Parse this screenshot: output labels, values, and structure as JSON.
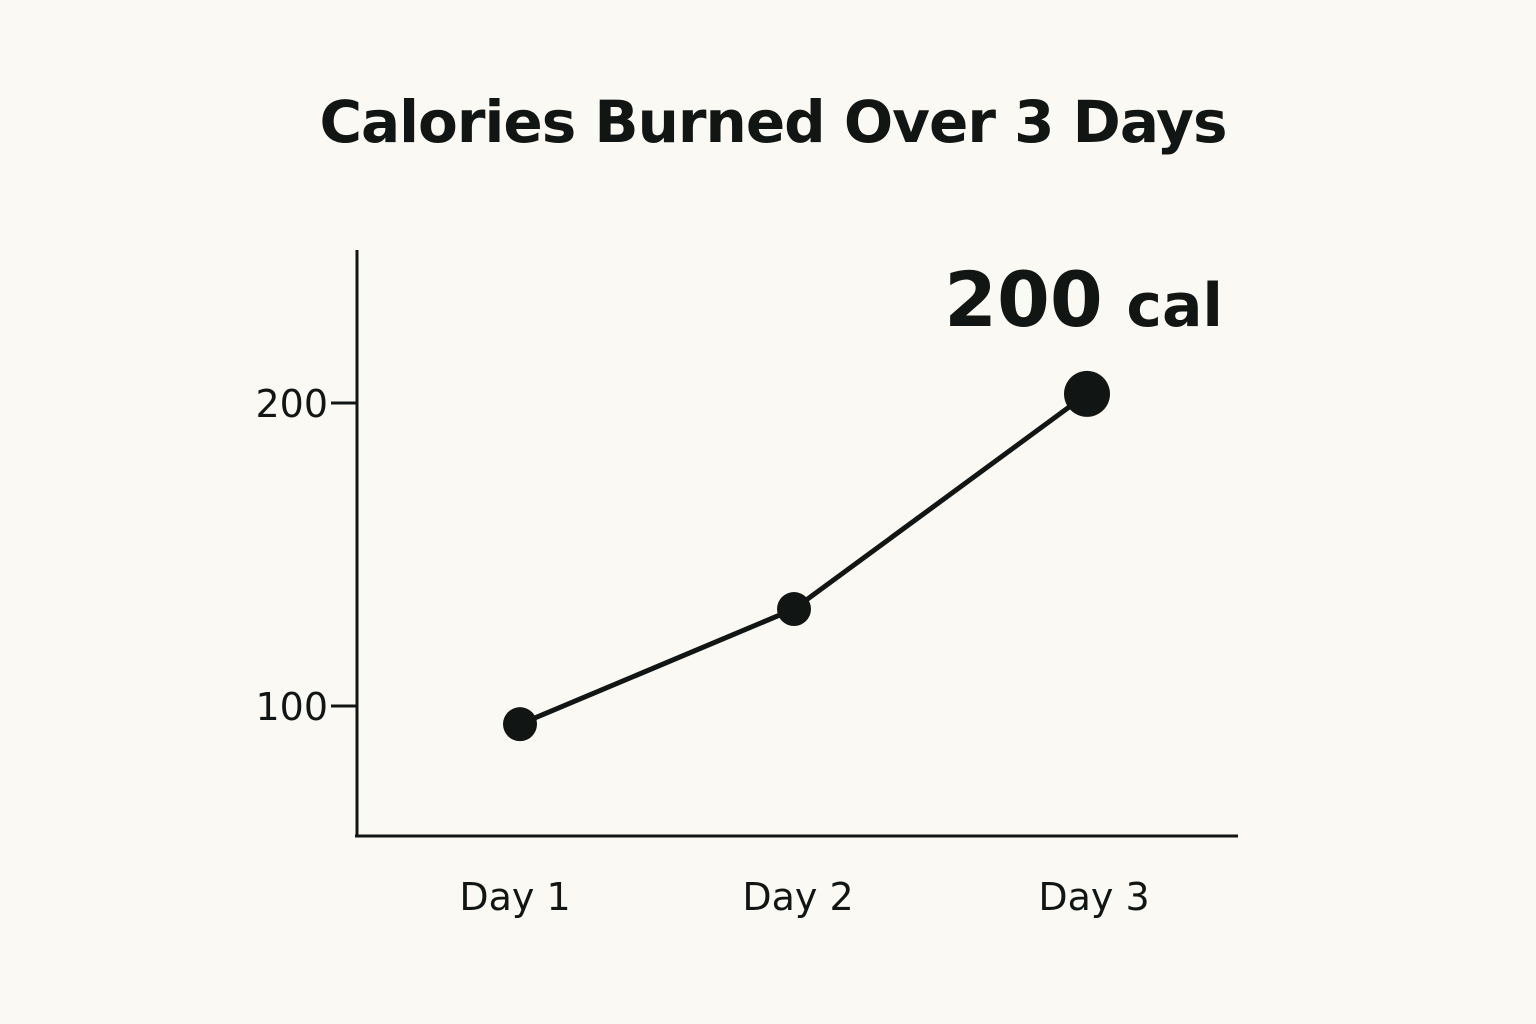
{
  "chart_data": {
    "type": "line",
    "title": "Calories Burned Over 3 Days",
    "xlabel": "",
    "ylabel": "",
    "categories": [
      "Day 1",
      "Day 2",
      "Day 3"
    ],
    "values": [
      94,
      132,
      203
    ],
    "yticks": [
      100,
      200
    ],
    "ylim": [
      57,
      250
    ],
    "grid": false,
    "legend": "none",
    "annotation": {
      "value_text": "200",
      "unit_text": "cal",
      "category": "Day 3"
    },
    "color": "#111614"
  }
}
